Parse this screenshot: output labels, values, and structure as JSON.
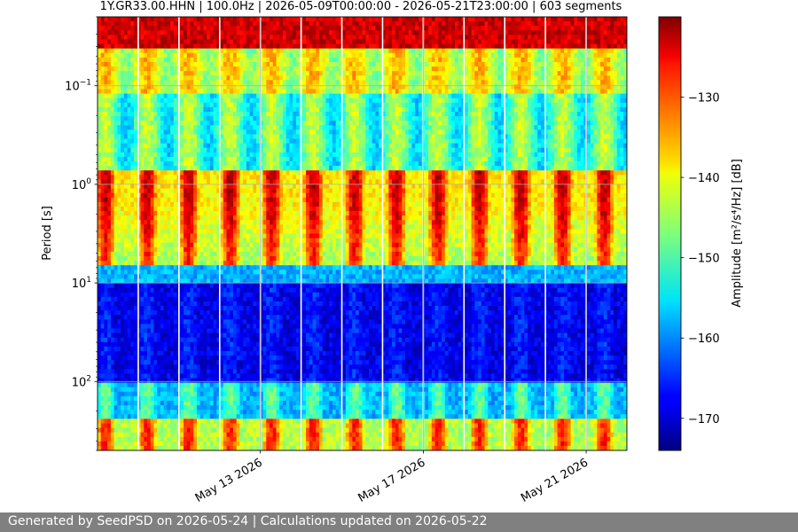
{
  "chart_data": {
    "type": "heatmap",
    "title": "1Y.GR33.00.HHN | 100.0Hz | 2026-05-09T00:00:00 - 2026-05-21T23:00:00 | 603 segments",
    "ylabel": "Period [s]",
    "y_scale": "log",
    "y_inverted": true,
    "y_ticks": [
      {
        "value": 0.1,
        "base": "10",
        "exp": "−1"
      },
      {
        "value": 1,
        "base": "10",
        "exp": "0"
      },
      {
        "value": 10,
        "base": "10",
        "exp": "1"
      },
      {
        "value": 100,
        "base": "10",
        "exp": "2"
      }
    ],
    "ylim": [
      0.02,
      500
    ],
    "x_ticks": [
      {
        "date": "2026-05-13",
        "label": "May 13 2026"
      },
      {
        "date": "2026-05-17",
        "label": "May 17 2026"
      },
      {
        "date": "2026-05-21",
        "label": "May 21 2026"
      }
    ],
    "xlim": [
      "2026-05-09",
      "2026-05-22"
    ],
    "grid": true,
    "colorbar": {
      "label": "Amplitude [m²/s⁴/Hz] [dB]",
      "colormap": "jet",
      "range": [
        -174,
        -120
      ],
      "ticks": [
        {
          "value": -130,
          "label": "−130"
        },
        {
          "value": -140,
          "label": "−140"
        },
        {
          "value": -150,
          "label": "−150"
        },
        {
          "value": -160,
          "label": "−160"
        },
        {
          "value": -170,
          "label": "−170"
        }
      ]
    },
    "data_gaps": [
      "2026-05-10",
      "2026-05-11",
      "2026-05-12",
      "2026-05-13",
      "2026-05-14",
      "2026-05-15",
      "2026-05-16",
      "2026-05-17",
      "2026-05-18",
      "2026-05-19",
      "2026-05-20",
      "2026-05-21"
    ]
  },
  "footer": {
    "text": "Generated by SeedPSD on 2026-05-24 | Calculations updated on 2026-05-22"
  }
}
